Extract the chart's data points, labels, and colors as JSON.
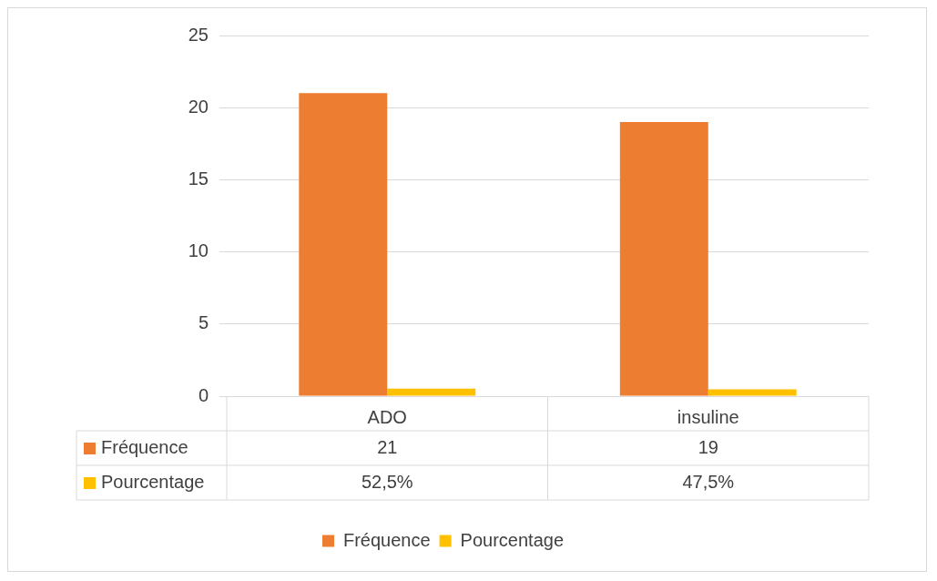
{
  "chart_data": {
    "type": "bar",
    "categories": [
      "ADO",
      "insuline"
    ],
    "series": [
      {
        "name": "Fréquence",
        "color": "#ed7d31",
        "values": [
          21,
          19
        ],
        "value_labels": [
          "21",
          "19"
        ]
      },
      {
        "name": "Pourcentage",
        "color": "#ffc000",
        "values": [
          0.525,
          0.475
        ],
        "value_labels": [
          "52,5%",
          "47,5%"
        ]
      }
    ],
    "ylim": [
      0,
      25
    ],
    "yticks": [
      0,
      5,
      10,
      15,
      20,
      25
    ],
    "grid": "y",
    "legend": "bottom"
  }
}
